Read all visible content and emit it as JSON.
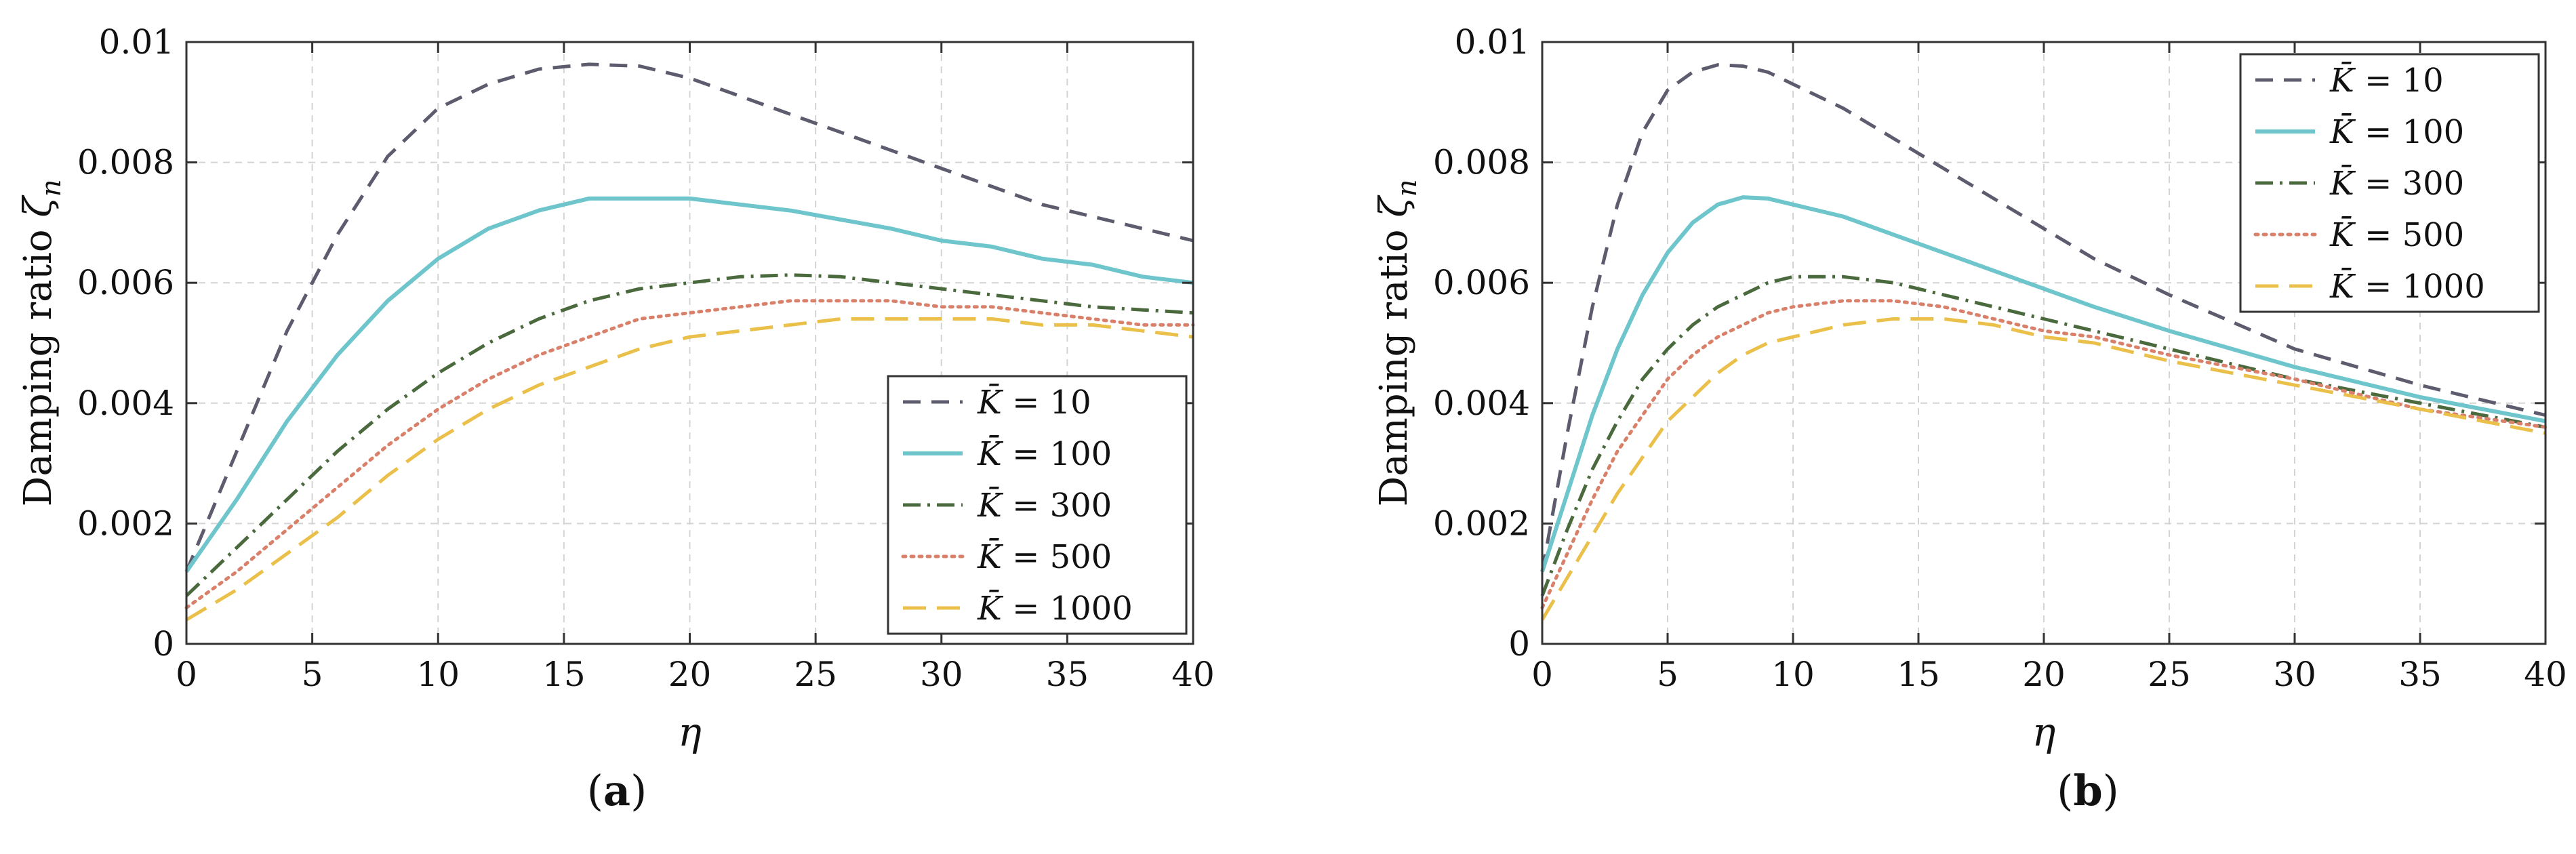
{
  "figure": {
    "captions": [
      "a",
      "b"
    ]
  },
  "chart_data": [
    {
      "panel": "a",
      "type": "line",
      "xlabel": "η",
      "ylabel": "Damping ratio ζn",
      "ylabel_main": "Damping ratio ",
      "ylabel_sym": "ζ",
      "ylabel_sub": "n",
      "xlim": [
        0,
        40
      ],
      "ylim": [
        0,
        0.01
      ],
      "xticks": [
        0,
        5,
        10,
        15,
        20,
        25,
        30,
        35,
        40
      ],
      "xtick_labels": [
        "0",
        "5",
        "10",
        "15",
        "20",
        "25",
        "30",
        "35",
        "40"
      ],
      "yticks": [
        0,
        0.002,
        0.004,
        0.006,
        0.008,
        0.01
      ],
      "ytick_labels": [
        "0",
        "0.002",
        "0.004",
        "0.006",
        "0.008",
        "0.01"
      ],
      "grid": true,
      "legend_position": "lower-right",
      "series": [
        {
          "name": "K̄ = 10",
          "legend_value": "10",
          "color": "#5c5c6e",
          "style": "dashed",
          "x": [
            0,
            2,
            4,
            6,
            8,
            10,
            12,
            14,
            16,
            18,
            20,
            22,
            24,
            26,
            28,
            30,
            32,
            34,
            36,
            38,
            40
          ],
          "y": [
            0.0012,
            0.0032,
            0.0052,
            0.0068,
            0.0081,
            0.0089,
            0.0093,
            0.00955,
            0.00963,
            0.0096,
            0.0094,
            0.0091,
            0.0088,
            0.0085,
            0.0082,
            0.0079,
            0.0076,
            0.0073,
            0.0071,
            0.0069,
            0.0067
          ]
        },
        {
          "name": "K̄ = 100",
          "legend_value": "100",
          "color": "#6ec6cc",
          "style": "solid",
          "x": [
            0,
            2,
            4,
            6,
            8,
            10,
            12,
            14,
            16,
            18,
            20,
            22,
            24,
            26,
            28,
            30,
            32,
            34,
            36,
            38,
            40
          ],
          "y": [
            0.0012,
            0.0024,
            0.0037,
            0.0048,
            0.0057,
            0.0064,
            0.0069,
            0.0072,
            0.0074,
            0.0074,
            0.0074,
            0.0073,
            0.0072,
            0.00705,
            0.0069,
            0.0067,
            0.0066,
            0.0064,
            0.0063,
            0.0061,
            0.006
          ]
        },
        {
          "name": "K̄ = 300",
          "legend_value": "300",
          "color": "#4a6a3e",
          "style": "dashdot",
          "x": [
            0,
            2,
            4,
            6,
            8,
            10,
            12,
            14,
            16,
            18,
            20,
            22,
            24,
            26,
            28,
            30,
            32,
            34,
            36,
            38,
            40
          ],
          "y": [
            0.0008,
            0.0016,
            0.0024,
            0.0032,
            0.0039,
            0.0045,
            0.005,
            0.0054,
            0.0057,
            0.0059,
            0.006,
            0.0061,
            0.00613,
            0.0061,
            0.006,
            0.0059,
            0.0058,
            0.0057,
            0.0056,
            0.00555,
            0.0055
          ]
        },
        {
          "name": "K̄ = 500",
          "legend_value": "500",
          "color": "#d9806a",
          "style": "dotted",
          "x": [
            0,
            2,
            4,
            6,
            8,
            10,
            12,
            14,
            16,
            18,
            20,
            22,
            24,
            26,
            28,
            30,
            32,
            34,
            36,
            38,
            40
          ],
          "y": [
            0.0006,
            0.0012,
            0.0019,
            0.0026,
            0.0033,
            0.0039,
            0.0044,
            0.0048,
            0.0051,
            0.0054,
            0.0055,
            0.0056,
            0.0057,
            0.0057,
            0.0057,
            0.0056,
            0.0056,
            0.0055,
            0.0054,
            0.0053,
            0.0053
          ]
        },
        {
          "name": "K̄ = 1000",
          "legend_value": "1000",
          "color": "#eac04a",
          "style": "longdash",
          "x": [
            0,
            2,
            4,
            6,
            8,
            10,
            12,
            14,
            16,
            18,
            20,
            22,
            24,
            26,
            28,
            30,
            32,
            34,
            36,
            38,
            40
          ],
          "y": [
            0.0004,
            0.0009,
            0.0015,
            0.0021,
            0.0028,
            0.0034,
            0.0039,
            0.0043,
            0.0046,
            0.0049,
            0.0051,
            0.0052,
            0.0053,
            0.0054,
            0.0054,
            0.0054,
            0.0054,
            0.0053,
            0.0053,
            0.0052,
            0.0051
          ]
        }
      ]
    },
    {
      "panel": "b",
      "type": "line",
      "xlabel": "η",
      "ylabel": "Damping ratio ζn",
      "ylabel_main": "Damping ratio ",
      "ylabel_sym": "ζ",
      "ylabel_sub": "n",
      "xlim": [
        0,
        40
      ],
      "ylim": [
        0,
        0.01
      ],
      "xticks": [
        0,
        5,
        10,
        15,
        20,
        25,
        30,
        35,
        40
      ],
      "xtick_labels": [
        "0",
        "5",
        "10",
        "15",
        "20",
        "25",
        "30",
        "35",
        "40"
      ],
      "yticks": [
        0,
        0.002,
        0.004,
        0.006,
        0.008,
        0.01
      ],
      "ytick_labels": [
        "0",
        "0.002",
        "0.004",
        "0.006",
        "0.008",
        "0.01"
      ],
      "grid": true,
      "legend_position": "top-right",
      "series": [
        {
          "name": "K̄ = 10",
          "legend_value": "10",
          "color": "#5c5c6e",
          "style": "dashed",
          "x": [
            0,
            1,
            2,
            3,
            4,
            5,
            6,
            7,
            8,
            9,
            10,
            12,
            14,
            16,
            18,
            20,
            22,
            25,
            30,
            35,
            40
          ],
          "y": [
            0.0012,
            0.0035,
            0.0056,
            0.0073,
            0.0085,
            0.0092,
            0.0095,
            0.00962,
            0.0096,
            0.0095,
            0.0093,
            0.0089,
            0.0084,
            0.0079,
            0.0074,
            0.0069,
            0.0064,
            0.0058,
            0.0049,
            0.0043,
            0.0038
          ]
        },
        {
          "name": "K̄ = 100",
          "legend_value": "100",
          "color": "#6ec6cc",
          "style": "solid",
          "x": [
            0,
            1,
            2,
            3,
            4,
            5,
            6,
            7,
            8,
            9,
            10,
            12,
            14,
            16,
            18,
            20,
            22,
            25,
            30,
            35,
            40
          ],
          "y": [
            0.0012,
            0.0025,
            0.0038,
            0.0049,
            0.0058,
            0.0065,
            0.007,
            0.0073,
            0.00742,
            0.0074,
            0.0073,
            0.0071,
            0.0068,
            0.0065,
            0.0062,
            0.0059,
            0.0056,
            0.0052,
            0.0046,
            0.0041,
            0.0037
          ]
        },
        {
          "name": "K̄ = 300",
          "legend_value": "300",
          "color": "#4a6a3e",
          "style": "dashdot",
          "x": [
            0,
            1,
            2,
            3,
            4,
            5,
            6,
            7,
            8,
            9,
            10,
            12,
            14,
            16,
            18,
            20,
            22,
            25,
            30,
            35,
            40
          ],
          "y": [
            0.0008,
            0.0019,
            0.0029,
            0.0037,
            0.0044,
            0.0049,
            0.0053,
            0.0056,
            0.0058,
            0.006,
            0.0061,
            0.0061,
            0.006,
            0.0058,
            0.0056,
            0.0054,
            0.0052,
            0.0049,
            0.0044,
            0.004,
            0.0036
          ]
        },
        {
          "name": "K̄ = 500",
          "legend_value": "500",
          "color": "#d9806a",
          "style": "dotted",
          "x": [
            0,
            1,
            2,
            3,
            4,
            5,
            6,
            7,
            8,
            9,
            10,
            12,
            14,
            16,
            18,
            20,
            22,
            25,
            30,
            35,
            40
          ],
          "y": [
            0.0006,
            0.0015,
            0.0024,
            0.0032,
            0.0038,
            0.0044,
            0.0048,
            0.0051,
            0.0053,
            0.0055,
            0.0056,
            0.0057,
            0.0057,
            0.0056,
            0.0054,
            0.0052,
            0.0051,
            0.0048,
            0.0044,
            0.0039,
            0.0036
          ]
        },
        {
          "name": "K̄ = 1000",
          "legend_value": "1000",
          "color": "#eac04a",
          "style": "longdash",
          "x": [
            0,
            1,
            2,
            3,
            4,
            5,
            6,
            7,
            8,
            9,
            10,
            12,
            14,
            16,
            18,
            20,
            22,
            25,
            30,
            35,
            40
          ],
          "y": [
            0.0004,
            0.0011,
            0.0018,
            0.0025,
            0.0031,
            0.0037,
            0.0041,
            0.0045,
            0.0048,
            0.005,
            0.0051,
            0.0053,
            0.0054,
            0.0054,
            0.0053,
            0.0051,
            0.005,
            0.0047,
            0.0043,
            0.0039,
            0.0035
          ]
        }
      ]
    }
  ]
}
